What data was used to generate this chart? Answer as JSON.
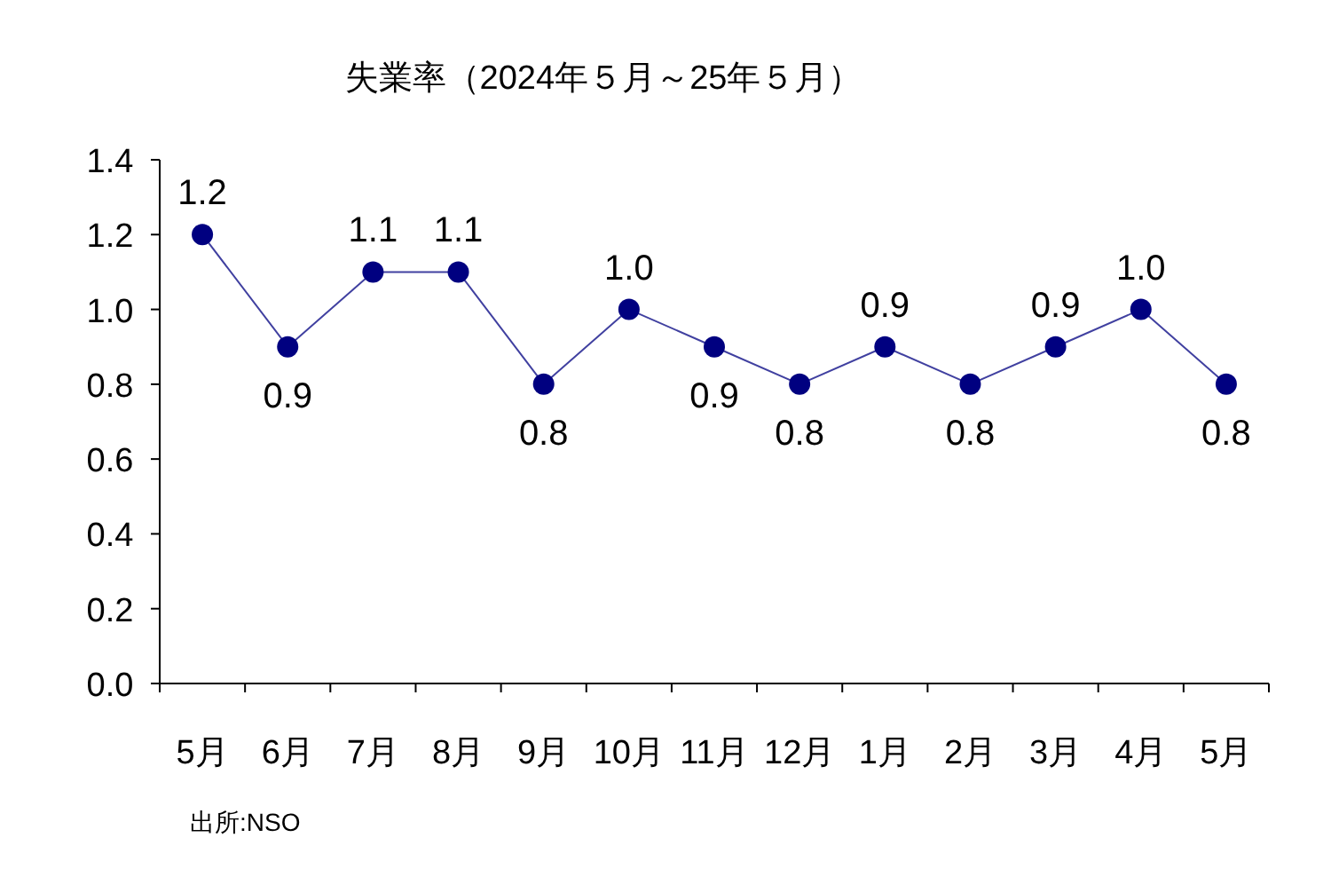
{
  "chart_data": {
    "type": "line",
    "title": "失業率（2024年５月～25年５月）",
    "categories": [
      "5月",
      "6月",
      "7月",
      "8月",
      "9月",
      "10月",
      "11月",
      "12月",
      "1月",
      "2月",
      "3月",
      "4月",
      "5月"
    ],
    "values": [
      1.2,
      0.9,
      1.1,
      1.1,
      0.8,
      1.0,
      0.9,
      0.8,
      0.9,
      0.8,
      0.9,
      1.0,
      0.8
    ],
    "color": "#000080",
    "marker": "circle",
    "value_labels": [
      "1.2",
      "0.9",
      "1.1",
      "1.1",
      "0.8",
      "1.0",
      "0.9",
      "0.8",
      "0.9",
      "0.8",
      "0.9",
      "1.0",
      "0.8"
    ],
    "ylim": [
      0,
      1.4
    ],
    "yticks": [
      {
        "value": 0,
        "label": "0.0"
      },
      {
        "value": 0.2,
        "label": "0.2"
      },
      {
        "value": 0.4,
        "label": "0.4"
      },
      {
        "value": 0.6,
        "label": "0.6"
      },
      {
        "value": 0.8,
        "label": "0.8"
      },
      {
        "value": 1.0,
        "label": "1.0"
      },
      {
        "value": 1.2,
        "label": "1.2"
      },
      {
        "value": 1.4,
        "label": "1.4"
      }
    ],
    "annotations": [
      "出所:NSO"
    ]
  }
}
